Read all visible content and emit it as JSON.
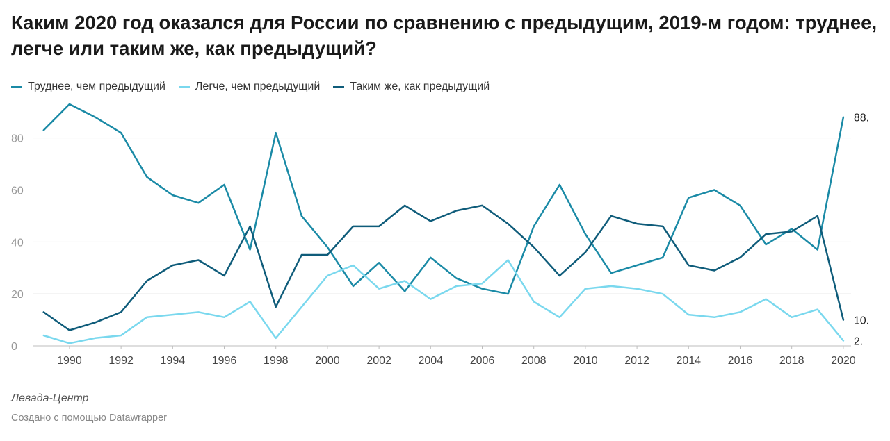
{
  "header": {
    "title": "Каким 2020 год оказался для России по сравнению с предыдущим, 2019-м годом: труднее, легче или таким же, как предыдущий?"
  },
  "footer": {
    "source": "Левада-Центр",
    "credit": "Создано с помощью Datawrapper"
  },
  "chart_data": {
    "type": "line",
    "title": "Каким 2020 год оказался для России по сравнению с предыдущим, 2019-м годом: труднее, легче или таким же, как предыдущий?",
    "xlabel": "",
    "ylabel": "",
    "x": [
      1989,
      1990,
      1991,
      1992,
      1993,
      1994,
      1995,
      1996,
      1997,
      1998,
      1999,
      2000,
      2001,
      2002,
      2003,
      2004,
      2005,
      2006,
      2007,
      2008,
      2009,
      2010,
      2011,
      2012,
      2013,
      2014,
      2015,
      2016,
      2017,
      2018,
      2019,
      2020
    ],
    "xlim": [
      1988.6,
      2020.3
    ],
    "ylim": [
      0,
      93
    ],
    "y_ticks": [
      0,
      20,
      40,
      60,
      80
    ],
    "x_ticks": [
      1990,
      1992,
      1994,
      1996,
      1998,
      2000,
      2002,
      2004,
      2006,
      2008,
      2010,
      2012,
      2014,
      2016,
      2018,
      2020
    ],
    "grid": true,
    "legend_position": "top-left",
    "series": [
      {
        "name": "Труднее, чем предыдущий",
        "color": "#1a8aa6",
        "values": [
          83,
          93,
          88,
          82,
          65,
          58,
          55,
          62,
          37,
          82,
          50,
          38,
          23,
          32,
          21,
          34,
          26,
          22,
          20,
          46,
          62,
          43,
          28,
          31,
          34,
          57,
          60,
          54,
          39,
          45,
          37,
          88
        ],
        "end_label": "88."
      },
      {
        "name": "Легче, чем предыдущий",
        "color": "#7ad8ee",
        "values": [
          4,
          1,
          3,
          4,
          11,
          12,
          13,
          11,
          17,
          3,
          15,
          27,
          31,
          22,
          25,
          18,
          23,
          24,
          33,
          17,
          11,
          22,
          23,
          22,
          20,
          12,
          11,
          13,
          18,
          11,
          14,
          2
        ],
        "end_label": "2."
      },
      {
        "name": "Таким  же, как предыдущий",
        "color": "#0f5c7a",
        "values": [
          13,
          6,
          9,
          13,
          25,
          31,
          33,
          27,
          46,
          15,
          35,
          35,
          46,
          46,
          54,
          48,
          52,
          54,
          47,
          38,
          27,
          36,
          50,
          47,
          46,
          31,
          29,
          34,
          43,
          44,
          50,
          10
        ],
        "end_label": "10."
      }
    ]
  }
}
